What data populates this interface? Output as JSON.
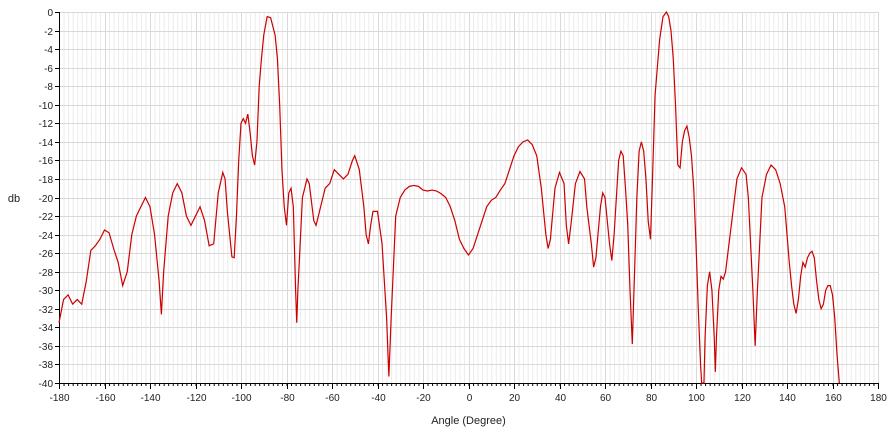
{
  "chart_data": {
    "type": "line",
    "title": "",
    "xlabel": "Angle (Degree)",
    "ylabel": "db",
    "xlim": [
      -180,
      180
    ],
    "ylim": [
      -40,
      0
    ],
    "x_ticks": [
      -180,
      -160,
      -140,
      -120,
      -100,
      -80,
      -60,
      -40,
      -20,
      0,
      20,
      40,
      60,
      80,
      100,
      120,
      140,
      160,
      180
    ],
    "y_ticks": [
      0,
      -2,
      -4,
      -6,
      -8,
      -10,
      -12,
      -14,
      -16,
      -18,
      -20,
      -22,
      -24,
      -26,
      -28,
      -30,
      -32,
      -34,
      -36,
      -38,
      -40
    ],
    "grid": true,
    "legend": "none",
    "colors": {
      "line": "#cc0000",
      "grid": "#d9d9d9",
      "axis": "#000000"
    },
    "series": [
      {
        "points": [
          [
            -180,
            -33.5
          ],
          [
            -178,
            -31
          ],
          [
            -176,
            -30.5
          ],
          [
            -174,
            -31.5
          ],
          [
            -172,
            -31
          ],
          [
            -170,
            -31.5
          ],
          [
            -168,
            -29
          ],
          [
            -166,
            -25.7
          ],
          [
            -164,
            -25.2
          ],
          [
            -162,
            -24.5
          ],
          [
            -160,
            -23.5
          ],
          [
            -158,
            -23.8
          ],
          [
            -156,
            -25.5
          ],
          [
            -154,
            -27
          ],
          [
            -152,
            -29.5
          ],
          [
            -150,
            -28
          ],
          [
            -148,
            -24
          ],
          [
            -146,
            -22
          ],
          [
            -144,
            -21
          ],
          [
            -142,
            -20
          ],
          [
            -140,
            -21
          ],
          [
            -138,
            -24
          ],
          [
            -136,
            -29
          ],
          [
            -135,
            -32.6
          ],
          [
            -134,
            -28
          ],
          [
            -132,
            -22
          ],
          [
            -130,
            -19.5
          ],
          [
            -128,
            -18.5
          ],
          [
            -126,
            -19.5
          ],
          [
            -124,
            -22
          ],
          [
            -122,
            -23
          ],
          [
            -120,
            -22
          ],
          [
            -118,
            -21
          ],
          [
            -116,
            -22.5
          ],
          [
            -114,
            -25.2
          ],
          [
            -112,
            -25
          ],
          [
            -110,
            -19.5
          ],
          [
            -108,
            -17.3
          ],
          [
            -107,
            -18
          ],
          [
            -106,
            -21.5
          ],
          [
            -104,
            -26.4
          ],
          [
            -103,
            -26.5
          ],
          [
            -102,
            -22
          ],
          [
            -101,
            -16
          ],
          [
            -100,
            -12
          ],
          [
            -99,
            -11.5
          ],
          [
            -98,
            -12
          ],
          [
            -97,
            -11
          ],
          [
            -96,
            -13
          ],
          [
            -95,
            -15.5
          ],
          [
            -94,
            -16.5
          ],
          [
            -93,
            -14
          ],
          [
            -92,
            -8
          ],
          [
            -91,
            -5
          ],
          [
            -90,
            -2.5
          ],
          [
            -88.5,
            -0.5
          ],
          [
            -87,
            -0.6
          ],
          [
            -85,
            -2.5
          ],
          [
            -84,
            -5
          ],
          [
            -83,
            -10
          ],
          [
            -82,
            -17
          ],
          [
            -81,
            -21
          ],
          [
            -80,
            -23
          ],
          [
            -79,
            -19.5
          ],
          [
            -78,
            -19
          ],
          [
            -77,
            -21
          ],
          [
            -76,
            -30
          ],
          [
            -75.5,
            -33.5
          ],
          [
            -75,
            -30
          ],
          [
            -73,
            -20
          ],
          [
            -71,
            -18
          ],
          [
            -70,
            -18.5
          ],
          [
            -69,
            -20.5
          ],
          [
            -68,
            -22.5
          ],
          [
            -67,
            -23
          ],
          [
            -65,
            -21
          ],
          [
            -63,
            -19
          ],
          [
            -61,
            -18.5
          ],
          [
            -59,
            -17
          ],
          [
            -57,
            -17.5
          ],
          [
            -55,
            -18
          ],
          [
            -53,
            -17.5
          ],
          [
            -51,
            -16
          ],
          [
            -50,
            -15.5
          ],
          [
            -48,
            -17
          ],
          [
            -46,
            -21
          ],
          [
            -45,
            -24
          ],
          [
            -44,
            -25
          ],
          [
            -43,
            -23
          ],
          [
            -42,
            -21.5
          ],
          [
            -40,
            -21.5
          ],
          [
            -38,
            -25
          ],
          [
            -36,
            -33
          ],
          [
            -35,
            -39.3
          ],
          [
            -34,
            -33
          ],
          [
            -32,
            -22
          ],
          [
            -30,
            -20
          ],
          [
            -28,
            -19.2
          ],
          [
            -26,
            -18.8
          ],
          [
            -24,
            -18.7
          ],
          [
            -22,
            -18.8
          ],
          [
            -20,
            -19.2
          ],
          [
            -18,
            -19.3
          ],
          [
            -16,
            -19.2
          ],
          [
            -14,
            -19.3
          ],
          [
            -12,
            -19.6
          ],
          [
            -10,
            -20
          ],
          [
            -8,
            -21
          ],
          [
            -6,
            -22.5
          ],
          [
            -4,
            -24.5
          ],
          [
            -2,
            -25.5
          ],
          [
            0,
            -26.2
          ],
          [
            2,
            -25.5
          ],
          [
            4,
            -24
          ],
          [
            6,
            -22.5
          ],
          [
            8,
            -21
          ],
          [
            10,
            -20.3
          ],
          [
            12,
            -20
          ],
          [
            14,
            -19.2
          ],
          [
            16,
            -18.5
          ],
          [
            18,
            -17
          ],
          [
            20,
            -15.5
          ],
          [
            22,
            -14.5
          ],
          [
            24,
            -14
          ],
          [
            26,
            -13.8
          ],
          [
            28,
            -14.3
          ],
          [
            30,
            -15.5
          ],
          [
            32,
            -19
          ],
          [
            34,
            -24
          ],
          [
            35,
            -25.5
          ],
          [
            36,
            -24.5
          ],
          [
            38,
            -19
          ],
          [
            40,
            -17.3
          ],
          [
            42,
            -18.5
          ],
          [
            43,
            -23
          ],
          [
            44,
            -25
          ],
          [
            45,
            -23
          ],
          [
            47,
            -18.5
          ],
          [
            49,
            -17.2
          ],
          [
            51,
            -18
          ],
          [
            52,
            -21
          ],
          [
            54,
            -25
          ],
          [
            55,
            -27.5
          ],
          [
            56,
            -26.5
          ],
          [
            58,
            -21
          ],
          [
            59,
            -19.5
          ],
          [
            60,
            -20
          ],
          [
            62,
            -25
          ],
          [
            63,
            -26.8
          ],
          [
            64,
            -24
          ],
          [
            66,
            -16
          ],
          [
            67,
            -15
          ],
          [
            68,
            -15.5
          ],
          [
            69,
            -19
          ],
          [
            70,
            -23
          ],
          [
            71,
            -30
          ],
          [
            72,
            -35.8
          ],
          [
            73,
            -28
          ],
          [
            74,
            -20
          ],
          [
            75,
            -15
          ],
          [
            76,
            -14
          ],
          [
            77,
            -15
          ],
          [
            78,
            -18
          ],
          [
            79,
            -22.6
          ],
          [
            80,
            -24.5
          ],
          [
            81,
            -17
          ],
          [
            82,
            -9
          ],
          [
            83,
            -6
          ],
          [
            84,
            -3
          ],
          [
            85.5,
            -0.5
          ],
          [
            87,
            0
          ],
          [
            88,
            -0.5
          ],
          [
            89,
            -2
          ],
          [
            90,
            -5
          ],
          [
            91,
            -10
          ],
          [
            92,
            -16.5
          ],
          [
            93,
            -16.8
          ],
          [
            94,
            -14
          ],
          [
            95,
            -12.8
          ],
          [
            96,
            -12.3
          ],
          [
            97,
            -13.5
          ],
          [
            98,
            -15.5
          ],
          [
            99,
            -19
          ],
          [
            100,
            -25
          ],
          [
            101,
            -32
          ],
          [
            102,
            -38
          ],
          [
            102.5,
            -40
          ],
          [
            103.5,
            -40
          ],
          [
            104,
            -35
          ],
          [
            105,
            -29.5
          ],
          [
            106,
            -28
          ],
          [
            107,
            -30
          ],
          [
            108,
            -35
          ],
          [
            108.5,
            -38.8
          ],
          [
            109,
            -35
          ],
          [
            110,
            -30
          ],
          [
            111,
            -28.5
          ],
          [
            112,
            -28.8
          ],
          [
            113,
            -28
          ],
          [
            114,
            -26
          ],
          [
            116,
            -22
          ],
          [
            118,
            -18
          ],
          [
            120,
            -16.8
          ],
          [
            122,
            -17.5
          ],
          [
            123,
            -20
          ],
          [
            124,
            -25
          ],
          [
            125,
            -30
          ],
          [
            126,
            -36
          ],
          [
            127,
            -30
          ],
          [
            128,
            -25
          ],
          [
            129,
            -20
          ],
          [
            131,
            -17.5
          ],
          [
            133,
            -16.5
          ],
          [
            135,
            -17
          ],
          [
            137,
            -18.5
          ],
          [
            139,
            -21
          ],
          [
            140,
            -24
          ],
          [
            141,
            -27
          ],
          [
            142,
            -29.5
          ],
          [
            143,
            -31.5
          ],
          [
            144,
            -32.5
          ],
          [
            145,
            -31
          ],
          [
            146,
            -28.5
          ],
          [
            147,
            -27
          ],
          [
            148,
            -27.5
          ],
          [
            149,
            -26.5
          ],
          [
            150,
            -26
          ],
          [
            151,
            -25.8
          ],
          [
            152,
            -26.5
          ],
          [
            153,
            -29
          ],
          [
            154,
            -31
          ],
          [
            155,
            -32
          ],
          [
            156,
            -31.5
          ],
          [
            157,
            -30
          ],
          [
            158,
            -29.5
          ],
          [
            159,
            -29.5
          ],
          [
            160,
            -30.5
          ],
          [
            161,
            -33
          ],
          [
            162,
            -37
          ],
          [
            163,
            -40
          ]
        ]
      }
    ]
  }
}
